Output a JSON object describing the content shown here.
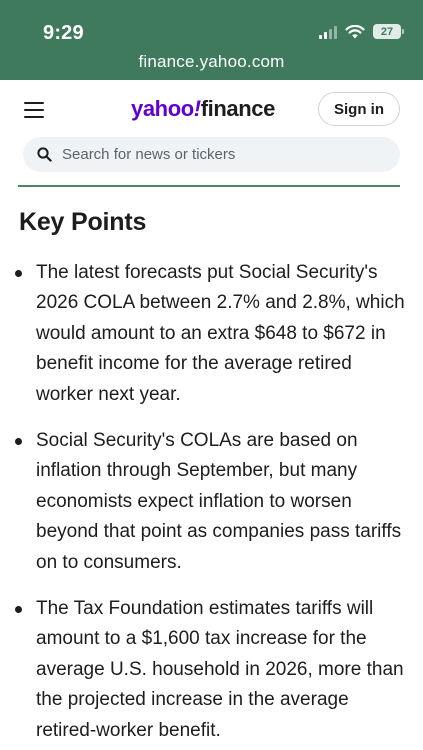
{
  "status_bar": {
    "time": "9:29",
    "battery": "27",
    "url": "finance.yahoo.com"
  },
  "header": {
    "logo_brand": "yahoo",
    "logo_bang": "!",
    "logo_product": "finance",
    "signin_label": "Sign in",
    "search_placeholder": "Search for news or tickers"
  },
  "article": {
    "heading": "Key Points",
    "points": [
      "The latest forecasts put Social Security's 2026 COLA between 2.7% and 2.8%, which would amount to an extra $648 to $672 in benefit income for the average retired worker next year.",
      "Social Security's COLAs are based on inflation through September, but many economists expect inflation to worsen beyond that point as companies pass tariffs on to consumers.",
      "The Tax Foundation estimates tariffs will amount to a $1,600 tax increase for the average U.S. household in 2026, more than the projected increase in the average retired-worker benefit."
    ]
  },
  "icons": {
    "menu": "hamburger-menu-icon",
    "search": "search-icon",
    "wifi": "wifi-icon",
    "signal": "cellular-signal-icon",
    "battery": "battery-icon"
  },
  "colors": {
    "browser_bar": "#3f7a5c",
    "yahoo_purple": "#6001d2",
    "text": "#1d1d1f",
    "search_bg": "#f0f3f5",
    "divider": "#4b8566"
  }
}
